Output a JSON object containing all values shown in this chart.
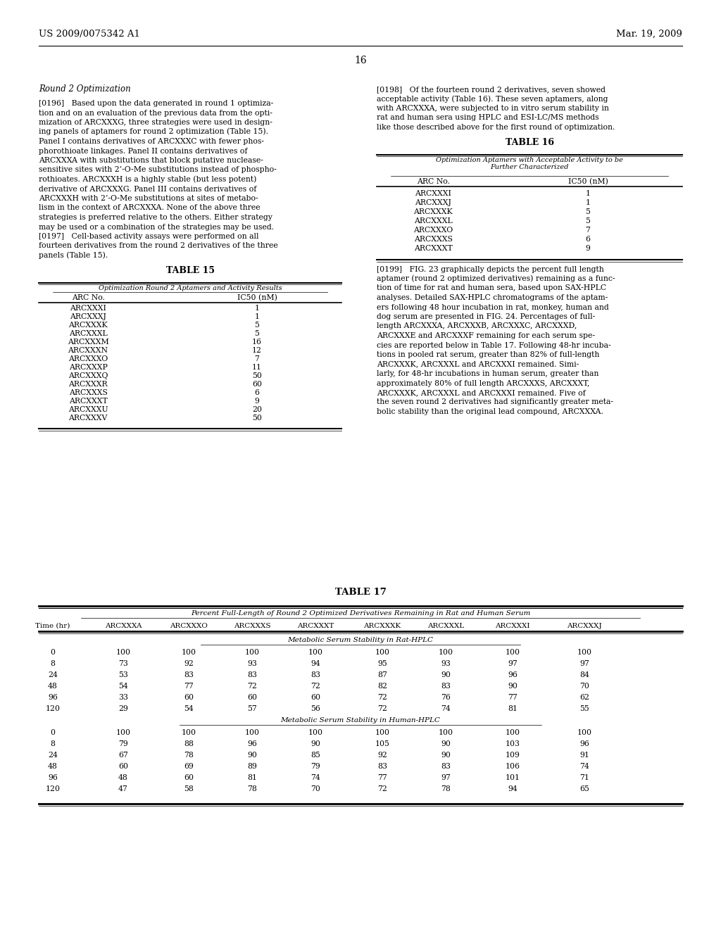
{
  "background_color": "#ffffff",
  "header_left": "US 2009/0075342 A1",
  "header_right": "Mar. 19, 2009",
  "page_number": "16",
  "left_col": {
    "section_heading": "Round 2 Optimization",
    "para196": "[0196]   Based upon the data generated in round 1 optimization and on an evaluation of the previous data from the optimization of ARCXXXG, three strategies were used in designing panels of aptamers for round 2 optimization (Table 15). Panel I contains derivatives of ARCXXXC with fewer phosphorothioate linkages. Panel II contains derivatives of ARCXXXA with substitutions that block putative nuclease-sensitive sites with 2’-O-Me substitutions instead of phosphorothioates. ARCXXXH is a highly stable (but less potent) derivative of ARCXXXG. Panel III contains derivatives of ARCXXXH with 2’-O-Me substitutions at sites of metabolism in the context of ARCXXXA. None of the above three strategies is preferred relative to the others. Either strategy may be used or a combination of the strategies may be used.",
    "para197": "[0197]   Cell-based activity assays were performed on all fourteen derivatives from the round 2 derivatives of the three panels (Table 15).",
    "table15_title": "TABLE 15",
    "table15_subtitle": "Optimization Round 2 Aptamers and Activity Results",
    "table15_col1": "ARC No.",
    "table15_col2": "IC50 (nM)",
    "table15_rows": [
      [
        "ARCXXXI",
        "1"
      ],
      [
        "ARCXXXJ",
        "1"
      ],
      [
        "ARCXXXK",
        "5"
      ],
      [
        "ARCXXXL",
        "5"
      ],
      [
        "ARCXXXM",
        "16"
      ],
      [
        "ARCXXXN",
        "12"
      ],
      [
        "ARCXXXO",
        "7"
      ],
      [
        "ARCXXXP",
        "11"
      ],
      [
        "ARCXXXQ",
        "50"
      ],
      [
        "ARCXXXR",
        "60"
      ],
      [
        "ARCXXXS",
        "6"
      ],
      [
        "ARCXXXT",
        "9"
      ],
      [
        "ARCXXXU",
        "20"
      ],
      [
        "ARCXXXV",
        "50"
      ]
    ]
  },
  "right_col": {
    "para198": "[0198]   Of the fourteen round 2 derivatives, seven showed acceptable activity (Table 16). These seven aptamers, along with ARCXXXA, were subjected to in vitro serum stability in rat and human sera using HPLC and ESI-LC/MS methods like those described above for the first round of optimization.",
    "table16_title": "TABLE 16",
    "table16_subtitle": "Optimization Aptamers with Acceptable Activity to be Further Characterized",
    "table16_col1": "ARC No.",
    "table16_col2": "IC50 (nM)",
    "table16_rows": [
      [
        "ARCXXXI",
        "1"
      ],
      [
        "ARCXXXJ",
        "1"
      ],
      [
        "ARCXXXK",
        "5"
      ],
      [
        "ARCXXXL",
        "5"
      ],
      [
        "ARCXXXO",
        "7"
      ],
      [
        "ARCXXXS",
        "6"
      ],
      [
        "ARCXXXT",
        "9"
      ]
    ],
    "para199": "[0199]   FIG. 23 graphically depicts the percent full length aptamer (round 2 optimized derivatives) remaining as a function of time for rat and human sera, based upon SAX-HPLC analyses. Detailed SAX-HPLC chromatograms of the aptamers following 48 hour incubation in rat, monkey, human and dog serum are presented in FIG. 24. Percentages of full-length ARCXXXA, ARCXXXB, ARCXXXC, ARCXXXD, ARCXXXE and ARCXXXF remaining for each serum species are reported below in Table 17. Following 48-hr incubations in pooled rat serum, greater than 82% of full-length ARCXXXK, ARCXXXL and ARCXXXI remained. Similarly, for 48-hr incubations in human serum, greater than approximately 80% of full length ARCXXXS, ARCXXXT, ARCXXXK, ARCXXXL and ARCXXXI remained. Five of the seven round 2 derivatives had significantly greater metabolic stability than the original lead compound, ARCXXXA."
  },
  "table17": {
    "title": "TABLE 17",
    "main_header": "Percent Full-Length of Round 2 Optimized Derivatives Remaining in Rat and Human Serum",
    "columns": [
      "Time (hr)",
      "ARCXXXA",
      "ARCXXXO",
      "ARCXXXS",
      "ARCXXXT",
      "ARCXXXK",
      "ARCXXXL",
      "ARCXXXI",
      "ARCXXXJ"
    ],
    "rat_label": "Metabolic Serum Stability in Rat-HPLC",
    "rat_rows": [
      [
        0,
        100,
        100,
        100,
        100,
        100,
        100,
        100,
        100
      ],
      [
        8,
        73,
        92,
        93,
        94,
        95,
        93,
        97,
        97
      ],
      [
        24,
        53,
        83,
        83,
        83,
        87,
        90,
        96,
        84
      ],
      [
        48,
        54,
        77,
        72,
        72,
        82,
        83,
        90,
        70
      ],
      [
        96,
        33,
        60,
        60,
        60,
        72,
        76,
        77,
        62
      ],
      [
        120,
        29,
        54,
        57,
        56,
        72,
        74,
        81,
        55
      ]
    ],
    "human_label": "Metabolic Serum Stability in Human-HPLC",
    "human_rows": [
      [
        0,
        100,
        100,
        100,
        100,
        100,
        100,
        100,
        100
      ],
      [
        8,
        79,
        88,
        96,
        90,
        105,
        90,
        103,
        96
      ],
      [
        24,
        67,
        78,
        90,
        85,
        92,
        90,
        109,
        91
      ],
      [
        48,
        60,
        69,
        89,
        79,
        83,
        83,
        106,
        74
      ],
      [
        96,
        48,
        60,
        81,
        74,
        77,
        97,
        101,
        71
      ],
      [
        120,
        47,
        58,
        78,
        70,
        72,
        78,
        94,
        65
      ]
    ]
  }
}
